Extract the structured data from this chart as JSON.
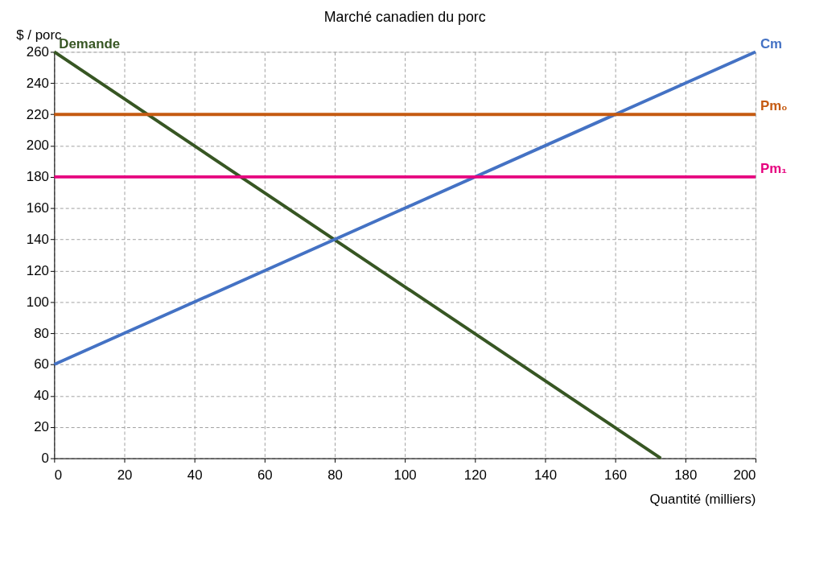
{
  "chart_data": {
    "type": "line",
    "title": "Marché canadien du porc",
    "xlabel": "Quantité (milliers)",
    "ylabel": "$ / porc",
    "series": [
      {
        "name": "Demande",
        "color": "#375623",
        "x": [
          0,
          173
        ],
        "values": [
          260,
          0
        ]
      },
      {
        "name": "Cm",
        "color": "#4472c4",
        "x": [
          0,
          200
        ],
        "values": [
          60,
          260
        ]
      },
      {
        "name": "Pm₀",
        "color": "#c55a11",
        "x": [
          0,
          200
        ],
        "values": [
          220,
          220
        ]
      },
      {
        "name": "Pm₁",
        "color": "#e6007e",
        "x": [
          0,
          200
        ],
        "values": [
          180,
          180
        ]
      }
    ],
    "xlim": [
      0,
      200
    ],
    "xticks": [
      0,
      20,
      40,
      60,
      80,
      100,
      120,
      140,
      160,
      180,
      200
    ],
    "ylim": [
      0,
      260
    ],
    "yticks": [
      0,
      20,
      40,
      60,
      80,
      100,
      120,
      140,
      160,
      180,
      200,
      220,
      240,
      260
    ],
    "grid": true,
    "legend": false,
    "marker": "none",
    "line_style": "solid"
  }
}
